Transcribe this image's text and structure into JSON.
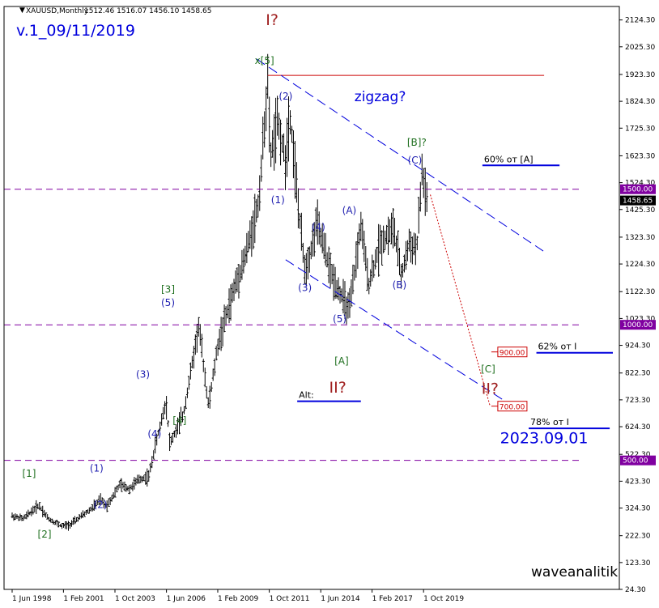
{
  "header": {
    "symbol_label": "XAUUSD,Monthly",
    "ohlc_text": "1512.46 1516.07 1456.10 1458.65"
  },
  "chart_data": {
    "type": "candlestick",
    "symbol": "XAUUSD",
    "timeframe": "Monthly",
    "ohlc": {
      "open": 1512.46,
      "high": 1516.07,
      "low": 1456.1,
      "close": 1458.65
    },
    "price_axis": {
      "ticks": [
        "24.30",
        "123.30",
        "222.30",
        "324.30",
        "423.30",
        "522.30",
        "624.30",
        "723.30",
        "822.30",
        "924.30",
        "1023.30",
        "1122.30",
        "1224.30",
        "1323.30",
        "1425.30",
        "1524.30",
        "1623.30",
        "1725.30",
        "1824.30",
        "1923.30",
        "2025.30",
        "2124.30"
      ],
      "range": [
        24.3,
        2174.0
      ],
      "current_price": "1458.65",
      "level_tags": [
        "1500.00",
        "1000.00",
        "500.00"
      ]
    },
    "time_axis": {
      "ticks": [
        "1 Jun 1998",
        "1 Feb 2001",
        "1 Oct 2003",
        "1 Jun 2006",
        "1 Feb 2009",
        "1 Oct 2011",
        "1 Jun 2014",
        "1 Feb 2017",
        "1 Oct 2019"
      ]
    },
    "price_path": [
      {
        "t": 1998.42,
        "p": 295
      },
      {
        "t": 1999.0,
        "p": 285
      },
      {
        "t": 1999.8,
        "p": 335
      },
      {
        "t": 2000.3,
        "p": 285
      },
      {
        "t": 2001.0,
        "p": 258
      },
      {
        "t": 2001.4,
        "p": 262
      },
      {
        "t": 2002.5,
        "p": 320
      },
      {
        "t": 2003.0,
        "p": 355
      },
      {
        "t": 2003.3,
        "p": 330
      },
      {
        "t": 2004.0,
        "p": 410
      },
      {
        "t": 2004.5,
        "p": 395
      },
      {
        "t": 2005.0,
        "p": 430
      },
      {
        "t": 2005.5,
        "p": 440
      },
      {
        "t": 2005.8,
        "p": 540
      },
      {
        "t": 2006.4,
        "p": 720
      },
      {
        "t": 2006.6,
        "p": 560
      },
      {
        "t": 2007.3,
        "p": 670
      },
      {
        "t": 2008.1,
        "p": 1000
      },
      {
        "t": 2008.6,
        "p": 700
      },
      {
        "t": 2009.1,
        "p": 930
      },
      {
        "t": 2010.0,
        "p": 1150
      },
      {
        "t": 2010.5,
        "p": 1250
      },
      {
        "t": 2011.2,
        "p": 1450
      },
      {
        "t": 2011.67,
        "p": 1900
      },
      {
        "t": 2011.8,
        "p": 1620
      },
      {
        "t": 2012.2,
        "p": 1750
      },
      {
        "t": 2012.6,
        "p": 1600
      },
      {
        "t": 2012.8,
        "p": 1790
      },
      {
        "t": 2013.0,
        "p": 1650
      },
      {
        "t": 2013.3,
        "p": 1400
      },
      {
        "t": 2013.6,
        "p": 1200
      },
      {
        "t": 2014.0,
        "p": 1300
      },
      {
        "t": 2014.2,
        "p": 1380
      },
      {
        "t": 2014.6,
        "p": 1280
      },
      {
        "t": 2015.0,
        "p": 1180
      },
      {
        "t": 2015.9,
        "p": 1050
      },
      {
        "t": 2016.5,
        "p": 1370
      },
      {
        "t": 2016.9,
        "p": 1150
      },
      {
        "t": 2017.5,
        "p": 1300
      },
      {
        "t": 2018.2,
        "p": 1360
      },
      {
        "t": 2018.6,
        "p": 1180
      },
      {
        "t": 2019.0,
        "p": 1300
      },
      {
        "t": 2019.4,
        "p": 1280
      },
      {
        "t": 2019.67,
        "p": 1560
      },
      {
        "t": 2019.92,
        "p": 1460
      }
    ],
    "levels": [
      {
        "price": 1920,
        "t1": 2011.67,
        "t2": 2026.0,
        "color": "#cc0000",
        "style": "solid"
      },
      {
        "price": 1500,
        "t1": 1998.0,
        "t2": 2028.0,
        "color": "#8000a0",
        "style": "dashed"
      },
      {
        "price": 1000,
        "t1": 1998.0,
        "t2": 2028.0,
        "color": "#8000a0",
        "style": "dashed"
      },
      {
        "price": 500,
        "t1": 1998.0,
        "t2": 2028.0,
        "color": "#8000a0",
        "style": "dashed"
      }
    ],
    "trendlines": [
      {
        "t1": 2011.1,
        "p1": 1980,
        "t2": 2026.0,
        "p2": 1270,
        "color": "#0000dd",
        "style": "dashed"
      },
      {
        "t1": 2012.6,
        "p1": 1240,
        "t2": 2024.6,
        "p2": 690,
        "color": "#0000dd",
        "style": "dashed"
      },
      {
        "t1": 2020.1,
        "p1": 1480,
        "t2": 2023.2,
        "p2": 700,
        "color": "#cc0000",
        "style": "dotted"
      }
    ],
    "zones": [
      {
        "label": "60% от [A]",
        "price": 1588,
        "t1": 2022.8,
        "t2": 2026.8,
        "color": "#0000dd"
      },
      {
        "label": "62% от I",
        "price": 897,
        "t1": 2025.6,
        "t2": 2029.6,
        "color": "#0000dd"
      },
      {
        "label": "78% от I",
        "price": 618,
        "t1": 2025.2,
        "t2": 2029.4,
        "color": "#0000dd"
      },
      {
        "label": "Alt:",
        "price": 718,
        "t1": 2013.2,
        "t2": 2016.5,
        "color": "#0000dd"
      }
    ],
    "price_tags": [
      {
        "text": "900.00",
        "price": 900,
        "t": 2023.6
      },
      {
        "text": "700.00",
        "price": 700,
        "t": 2023.6
      }
    ],
    "wave_labels": [
      {
        "text": "I?",
        "t": 2011.9,
        "p": 2105,
        "color": "#a02020",
        "size": 19
      },
      {
        "text": "x[5]",
        "t": 2011.5,
        "p": 1962,
        "color": "#207020",
        "size": 12
      },
      {
        "text": "(2)",
        "t": 2012.6,
        "p": 1830,
        "color": "#2020b0",
        "size": 12
      },
      {
        "text": "(1)",
        "t": 2012.2,
        "p": 1448,
        "color": "#2020b0",
        "size": 12
      },
      {
        "text": "(3)",
        "t": 2013.6,
        "p": 1125,
        "color": "#2020b0",
        "size": 12
      },
      {
        "text": "(4)",
        "t": 2014.3,
        "p": 1348,
        "color": "#2020b0",
        "size": 12
      },
      {
        "text": "(5)",
        "t": 2015.4,
        "p": 1010,
        "color": "#2020b0",
        "size": 12
      },
      {
        "text": "(A)",
        "t": 2015.9,
        "p": 1410,
        "color": "#2020b0",
        "size": 12
      },
      {
        "text": "(B)",
        "t": 2018.5,
        "p": 1135,
        "color": "#2020b0",
        "size": 12
      },
      {
        "text": "(C)",
        "t": 2019.3,
        "p": 1595,
        "color": "#2020b0",
        "size": 12
      },
      {
        "text": "[B]?",
        "t": 2019.4,
        "p": 1660,
        "color": "#207020",
        "size": 12
      },
      {
        "text": "[A]",
        "t": 2015.5,
        "p": 855,
        "color": "#207020",
        "size": 12
      },
      {
        "text": "II?",
        "t": 2015.3,
        "p": 750,
        "color": "#a02020",
        "size": 19
      },
      {
        "text": "[C]",
        "t": 2023.1,
        "p": 825,
        "color": "#207020",
        "size": 12
      },
      {
        "text": "II?",
        "t": 2023.2,
        "p": 745,
        "color": "#a02020",
        "size": 19
      },
      {
        "text": "[1]",
        "t": 1999.3,
        "p": 440,
        "color": "#207020",
        "size": 12
      },
      {
        "text": "[2]",
        "t": 2000.1,
        "p": 215,
        "color": "#207020",
        "size": 12
      },
      {
        "text": "(1)",
        "t": 2002.8,
        "p": 458,
        "color": "#2020b0",
        "size": 12
      },
      {
        "text": "(2)",
        "t": 2003.0,
        "p": 325,
        "color": "#2020b0",
        "size": 12
      },
      {
        "text": "(3)",
        "t": 2005.2,
        "p": 805,
        "color": "#2020b0",
        "size": 12
      },
      {
        "text": "(4)",
        "t": 2005.8,
        "p": 585,
        "color": "#2020b0",
        "size": 12
      },
      {
        "text": "[3]",
        "t": 2006.5,
        "p": 1118,
        "color": "#207020",
        "size": 12
      },
      {
        "text": "(5)",
        "t": 2006.5,
        "p": 1070,
        "color": "#2020b0",
        "size": 12
      },
      {
        "text": "[4]",
        "t": 2007.1,
        "p": 635,
        "color": "#207020",
        "size": 12
      }
    ],
    "annotations": [
      {
        "text": "zigzag?",
        "t": 2017.5,
        "p": 1825,
        "color": "#0000dd",
        "size": 17
      },
      {
        "text": "2023.09.01",
        "t": 2026.0,
        "p": 563,
        "color": "#0000dd",
        "size": 19
      }
    ]
  },
  "top_left_note": "v.1_09/11/2019",
  "watermark": "waveanalitik",
  "colors": {
    "bars": "#000000",
    "level_dash": "#8000a0",
    "trend": "#0000dd",
    "resistance": "#cc0000"
  }
}
